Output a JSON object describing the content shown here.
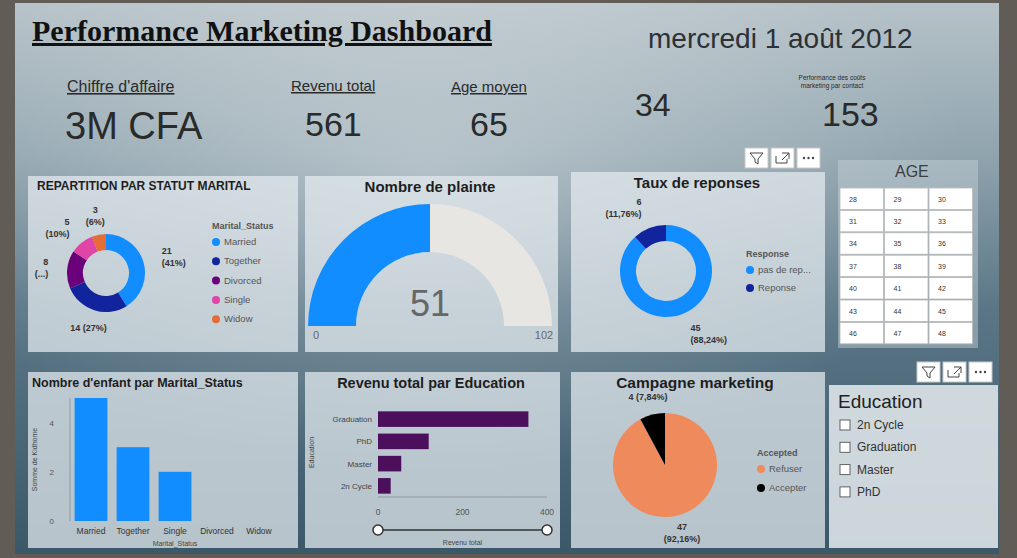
{
  "header": {
    "title": "Performance Marketing Dashboard",
    "date": "mercredi 1 août 2012"
  },
  "kpis": [
    {
      "label": "Chiffre d'affaire",
      "value": "3M CFA"
    },
    {
      "label": "Revenu total",
      "value": 561
    },
    {
      "label": "Age moyen",
      "value": 65
    },
    {
      "value": 34
    },
    {
      "label": "Performance des coûts marketing par contact",
      "value": 153
    }
  ],
  "age_slicer": {
    "title": "AGE",
    "values": [
      28,
      29,
      30,
      31,
      32,
      33,
      34,
      35,
      36,
      37,
      38,
      39,
      40,
      41,
      42,
      43,
      44,
      45,
      46,
      47,
      48
    ]
  },
  "education_slicer": {
    "title": "Education",
    "items": [
      "2n Cycle",
      "Graduation",
      "Master",
      "PhD"
    ]
  },
  "chart_data": [
    {
      "type": "donut",
      "title": "REPARTITION PAR STATUT MARITAL",
      "legend_title": "Marital_Status",
      "categories": [
        "Married",
        "Together",
        "Divorced",
        "Single",
        "Widow"
      ],
      "values": [
        21,
        14,
        8,
        5,
        3
      ],
      "value_labels": [
        "21 (41%)",
        "14 (27%)",
        "8 (...)",
        "5 (10%)",
        "3 (6%)"
      ],
      "colors": [
        "#118DFF",
        "#12239E",
        "#6B007B",
        "#E044A7",
        "#E66C37"
      ],
      "legend": "right",
      "data_labels": true
    },
    {
      "type": "gauge",
      "title": "Nombre de plainte",
      "values": [
        51
      ],
      "ylim": [
        0,
        102
      ],
      "yticks": [
        0,
        102
      ],
      "color": "#118DFF",
      "data_labels": true
    },
    {
      "type": "donut",
      "title": "Taux de reponses",
      "legend_title": "Response",
      "categories": [
        "pas de rep...",
        "Reponse"
      ],
      "values": [
        45,
        6
      ],
      "value_labels": [
        "45 (88,24%)",
        "6 (11,76%)"
      ],
      "colors": [
        "#118DFF",
        "#12239E"
      ],
      "legend": "right",
      "data_labels": true
    },
    {
      "type": "bar",
      "title": "Nombre d'enfant par Marital_Status",
      "x_label": "Marital_Status",
      "y_label": "Somme de Kidhome",
      "categories": [
        "Married",
        "Together",
        "Single",
        "Divorced",
        "Widow"
      ],
      "values": [
        5,
        3,
        2,
        0,
        0
      ],
      "ylim": [
        0,
        5
      ],
      "yticks": [
        0,
        2,
        4
      ],
      "color": "#118DFF",
      "grid": false
    },
    {
      "type": "bar",
      "orientation": "horizontal",
      "title": "Revenu total par Education",
      "x_label": "Revenu total",
      "y_label": "Education",
      "categories": [
        "Graduation",
        "PhD",
        "Master",
        "2n Cycle"
      ],
      "values": [
        356,
        120,
        55,
        30
      ],
      "xlim": [
        0,
        400
      ],
      "xticks": [
        0,
        200,
        400
      ],
      "color": "#4B0F5C",
      "grid": false
    },
    {
      "type": "pie",
      "title": "Campagne marketing",
      "legend_title": "Accepted",
      "categories": [
        "Refuser",
        "Accepter"
      ],
      "values": [
        47,
        4
      ],
      "value_labels": [
        "47 (92,16%)",
        "4 (7,84%)"
      ],
      "colors": [
        "#EE8A5C",
        "#000000"
      ],
      "legend": "right",
      "data_labels": true
    }
  ]
}
